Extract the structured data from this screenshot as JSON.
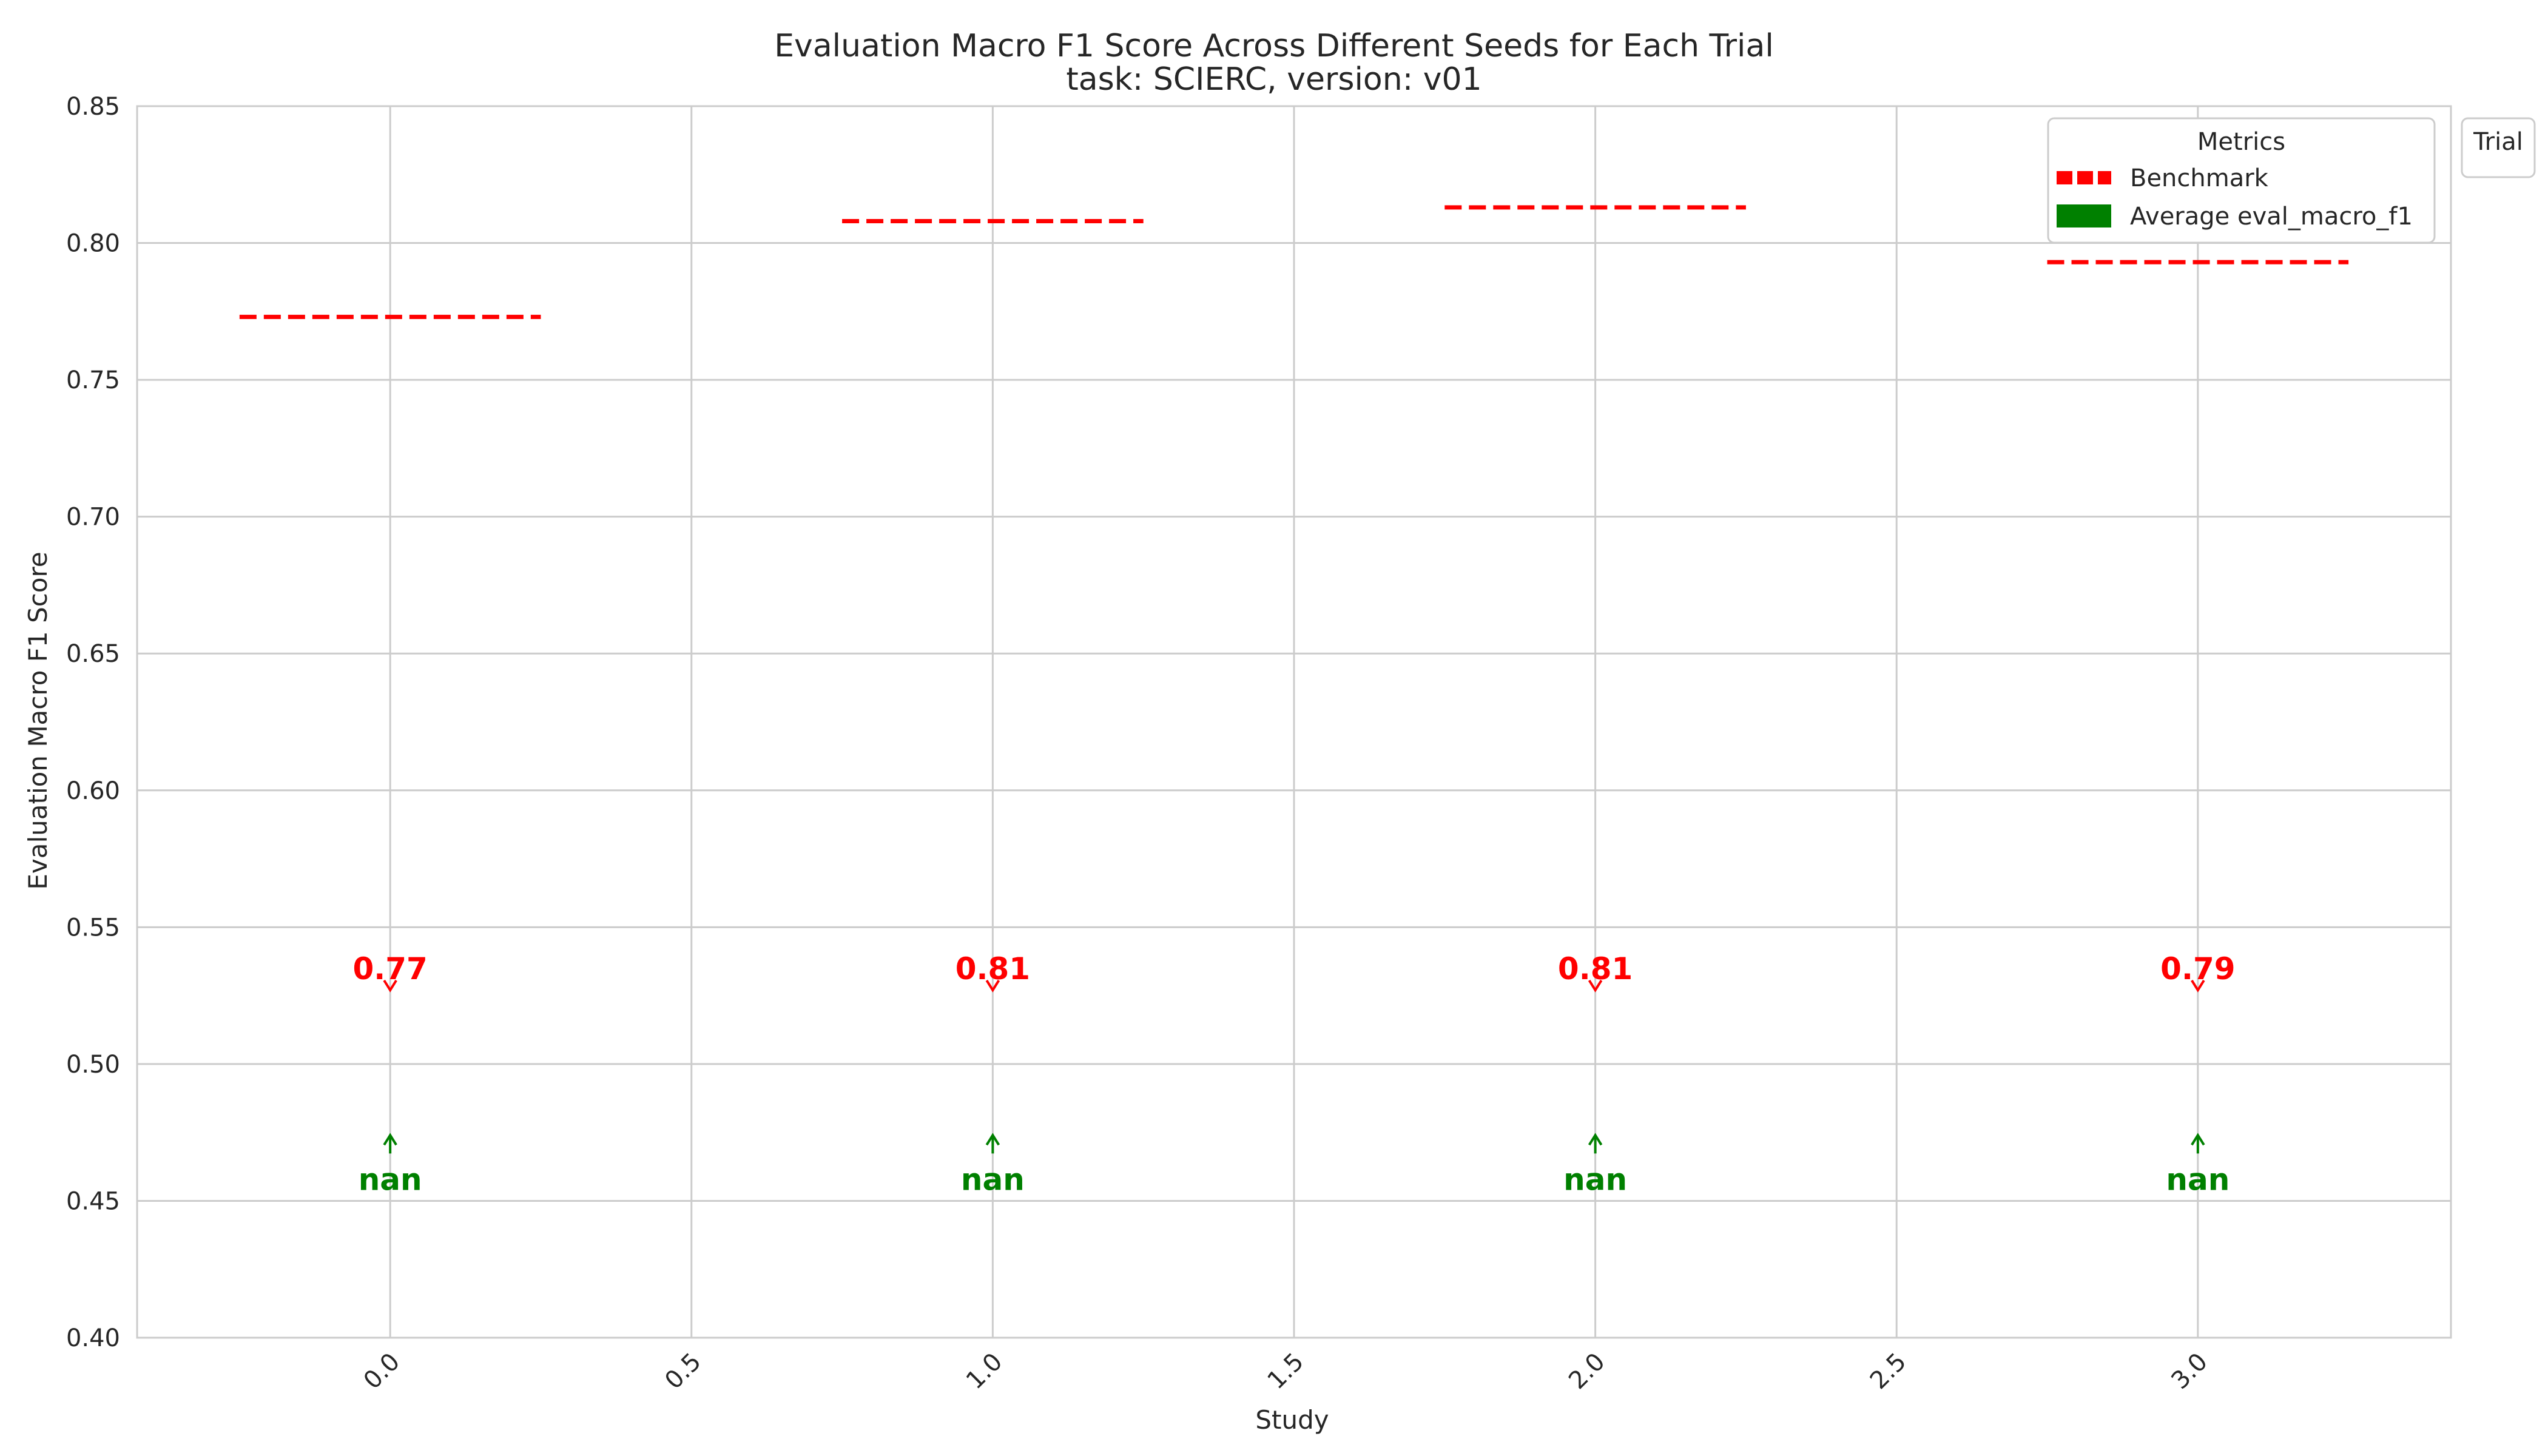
{
  "chart_data": {
    "type": "line",
    "title": "Evaluation Macro F1 Score Across Different Seeds for Each Trial",
    "subtitle": "task: SCIERC, version: v01",
    "xlabel": "Study",
    "ylabel": "Evaluation Macro F1 Score",
    "xlim": [
      -0.42,
      3.42
    ],
    "ylim": [
      0.4,
      0.85
    ],
    "x_ticks": [
      "0.0",
      "0.5",
      "1.0",
      "1.5",
      "2.0",
      "2.5",
      "3.0"
    ],
    "y_ticks": [
      "0.40",
      "0.45",
      "0.50",
      "0.55",
      "0.60",
      "0.65",
      "0.70",
      "0.75",
      "0.80",
      "0.85"
    ],
    "grid": true,
    "studies": [
      0,
      1,
      2,
      3
    ],
    "series": [
      {
        "name": "Benchmark",
        "style": "dashed",
        "values": [
          0.773,
          0.808,
          0.813,
          0.793
        ],
        "labels": [
          "0.77",
          "0.81",
          "0.81",
          "0.79"
        ],
        "label_y": 0.535,
        "arrow_target_y": 0.527
      },
      {
        "name": "Average eval_macro_f1",
        "style": "bar",
        "values": [
          null,
          null,
          null,
          null
        ],
        "labels": [
          "nan",
          "nan",
          "nan",
          "nan"
        ],
        "label_y": 0.458,
        "arrow_target_y": 0.474
      }
    ],
    "legend": {
      "title": "Metrics",
      "placement": "top-right",
      "entries": [
        "Benchmark",
        "Average eval_macro_f1"
      ]
    },
    "outside_legend": {
      "title": "Trial",
      "placement": "outside-right"
    }
  },
  "colors": {
    "benchmark": "#ff0000",
    "average": "#008000",
    "grid": "#cccccc",
    "axis": "#cccccc",
    "text": "#262626"
  }
}
